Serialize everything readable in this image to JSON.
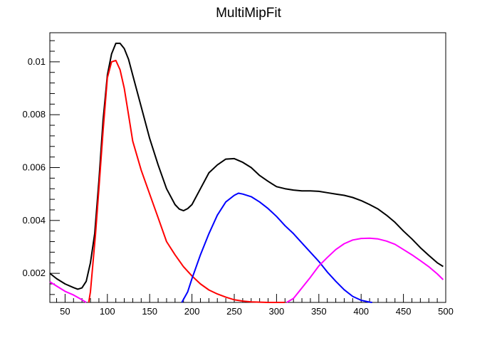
{
  "chart_data": {
    "type": "line",
    "title": "MultiMipFit",
    "xlabel": "",
    "ylabel": "",
    "xlim": [
      32,
      500
    ],
    "ylim": [
      0.0009,
      0.0111
    ],
    "grid": false,
    "legend": "none",
    "xticks": [
      50,
      100,
      150,
      200,
      250,
      300,
      350,
      400,
      450,
      500
    ],
    "xtick_labels": [
      "50",
      "100",
      "150",
      "200",
      "250",
      "300",
      "350",
      "400",
      "450",
      "500"
    ],
    "yticks": [
      0.002,
      0.004,
      0.006,
      0.008,
      0.01
    ],
    "ytick_labels": [
      "0.002",
      "0.004",
      "0.006",
      "0.008",
      "0.01"
    ],
    "series": [
      {
        "color": "#000000",
        "x": [
          32,
          40,
          50,
          60,
          65,
          70,
          75,
          80,
          85,
          90,
          95,
          100,
          105,
          110,
          115,
          120,
          125,
          130,
          140,
          150,
          160,
          170,
          180,
          185,
          190,
          195,
          200,
          210,
          220,
          230,
          240,
          250,
          260,
          270,
          280,
          290,
          300,
          310,
          320,
          330,
          340,
          350,
          360,
          370,
          380,
          390,
          400,
          410,
          420,
          430,
          440,
          450,
          460,
          470,
          480,
          490,
          497
        ],
        "y": [
          0.002,
          0.0018,
          0.0016,
          0.00146,
          0.0014,
          0.00145,
          0.0017,
          0.0024,
          0.0035,
          0.0055,
          0.0078,
          0.0095,
          0.0103,
          0.0107,
          0.0107,
          0.0105,
          0.0101,
          0.0095,
          0.0083,
          0.0071,
          0.0061,
          0.0052,
          0.0046,
          0.00443,
          0.00437,
          0.00445,
          0.0046,
          0.0052,
          0.0058,
          0.0061,
          0.00632,
          0.00634,
          0.0062,
          0.006,
          0.0057,
          0.00548,
          0.00528,
          0.0052,
          0.00515,
          0.00512,
          0.00512,
          0.0051,
          0.00505,
          0.005,
          0.00495,
          0.00487,
          0.00475,
          0.0046,
          0.00443,
          0.0042,
          0.00393,
          0.0036,
          0.0033,
          0.00297,
          0.00268,
          0.0024,
          0.00226
        ]
      },
      {
        "color": "#ff0000",
        "x": [
          78,
          80,
          83,
          86,
          90,
          95,
          100,
          105,
          110,
          115,
          120,
          125,
          130,
          140,
          150,
          160,
          170,
          180,
          190,
          200,
          210,
          220,
          230,
          240,
          250,
          260,
          270,
          280,
          290,
          300,
          310
        ],
        "y": [
          0.0009,
          0.0013,
          0.0024,
          0.0035,
          0.0052,
          0.0074,
          0.0094,
          0.01,
          0.01005,
          0.0097,
          0.009,
          0.008,
          0.007,
          0.0059,
          0.005,
          0.0041,
          0.0032,
          0.0027,
          0.00225,
          0.0019,
          0.0016,
          0.00137,
          0.00122,
          0.0011,
          0.001,
          0.00095,
          0.00092,
          0.00091,
          0.0009,
          0.0009,
          0.0009
        ]
      },
      {
        "color": "#0000ff",
        "x": [
          188,
          195,
          200,
          210,
          220,
          230,
          240,
          250,
          255,
          260,
          270,
          280,
          290,
          300,
          310,
          320,
          330,
          340,
          350,
          360,
          370,
          380,
          390,
          400,
          410,
          413
        ],
        "y": [
          0.0009,
          0.0013,
          0.0018,
          0.0027,
          0.0035,
          0.0042,
          0.0047,
          0.00495,
          0.00503,
          0.005,
          0.0049,
          0.0047,
          0.00445,
          0.00415,
          0.0038,
          0.0035,
          0.00315,
          0.0028,
          0.00245,
          0.00205,
          0.0017,
          0.00138,
          0.00113,
          0.00098,
          0.00091,
          0.0009
        ]
      },
      {
        "color": "#ff00ff",
        "x": [
          32,
          40,
          50,
          60,
          70,
          75,
          312,
          320,
          330,
          340,
          350,
          360,
          370,
          380,
          390,
          400,
          410,
          420,
          430,
          440,
          450,
          460,
          470,
          480,
          490,
          497
        ],
        "y": [
          0.00168,
          0.00152,
          0.00132,
          0.00118,
          0.001,
          0.0009,
          0.0009,
          0.00105,
          0.00145,
          0.00185,
          0.00228,
          0.0026,
          0.0029,
          0.00312,
          0.00326,
          0.00332,
          0.00333,
          0.0033,
          0.00322,
          0.0031,
          0.0029,
          0.0027,
          0.00248,
          0.00225,
          0.00198,
          0.00176
        ]
      }
    ]
  }
}
